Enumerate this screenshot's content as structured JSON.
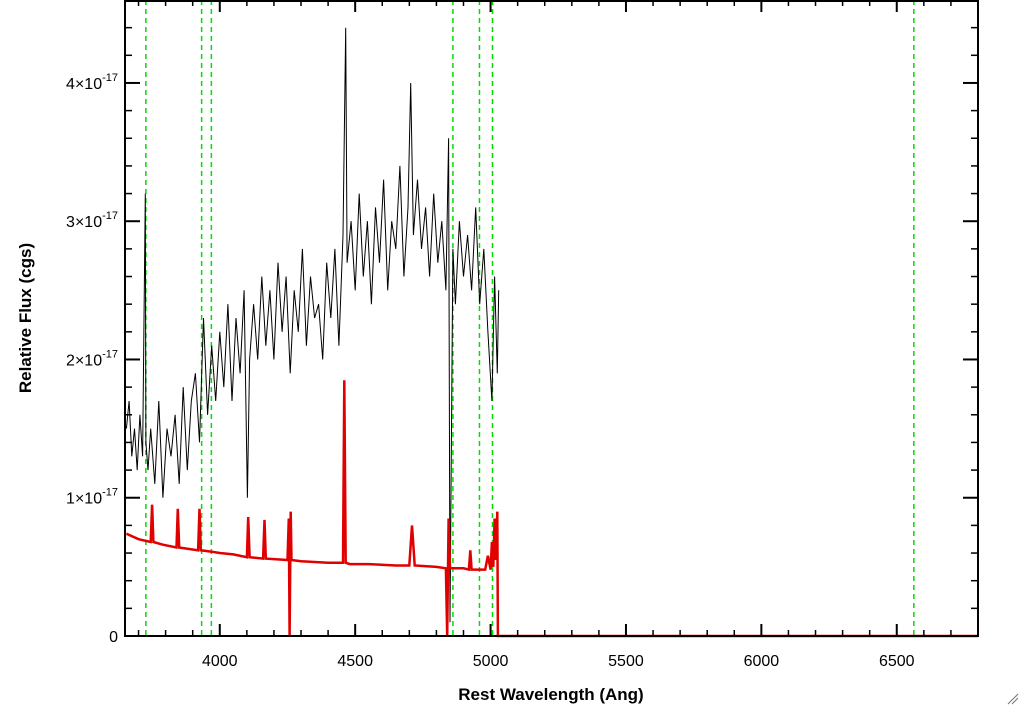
{
  "chart_data": {
    "type": "line",
    "title": "",
    "xlabel": "Rest Wavelength (Ang)",
    "ylabel": "Relative Flux (cgs)",
    "xlim": [
      3650,
      6800
    ],
    "ylim": [
      0,
      4.6e-17
    ],
    "x_ticks": [
      4000,
      4500,
      5000,
      5500,
      6000,
      6500
    ],
    "x_tick_labels": [
      "4000",
      "4500",
      "5000",
      "5500",
      "6000",
      "6500"
    ],
    "y_ticks": [
      0,
      1e-17,
      2e-17,
      3e-17,
      4e-17
    ],
    "y_tick_labels": [
      {
        "base": "0",
        "exp": ""
      },
      {
        "base": "1×10",
        "exp": "-17"
      },
      {
        "base": "2×10",
        "exp": "-17"
      },
      {
        "base": "3×10",
        "exp": "-17"
      },
      {
        "base": "4×10",
        "exp": "-17"
      }
    ],
    "grid": false,
    "colors": {
      "spectrum": "#000000",
      "error": "#e00000",
      "lines": "#00dd00",
      "frame": "#000000"
    },
    "vertical_lines": [
      3727,
      3933,
      3969,
      4861,
      4959,
      5007,
      6563
    ],
    "series": [
      {
        "role": "spectrum",
        "x": [
          3655,
          3665,
          3675,
          3685,
          3695,
          3705,
          3715,
          3725,
          3727,
          3735,
          3745,
          3760,
          3775,
          3790,
          3805,
          3820,
          3835,
          3850,
          3865,
          3880,
          3895,
          3910,
          3925,
          3940,
          3955,
          3970,
          3985,
          4000,
          4015,
          4030,
          4045,
          4060,
          4075,
          4090,
          4102,
          4110,
          4125,
          4140,
          4155,
          4170,
          4185,
          4200,
          4215,
          4230,
          4245,
          4260,
          4275,
          4290,
          4305,
          4320,
          4335,
          4350,
          4365,
          4380,
          4395,
          4410,
          4425,
          4440,
          4455,
          4465,
          4470,
          4485,
          4500,
          4515,
          4530,
          4545,
          4560,
          4575,
          4590,
          4605,
          4620,
          4635,
          4650,
          4665,
          4680,
          4695,
          4705,
          4715,
          4730,
          4745,
          4760,
          4775,
          4790,
          4805,
          4820,
          4835,
          4845,
          4850,
          4861,
          4870,
          4885,
          4900,
          4915,
          4930,
          4945,
          4960,
          4975,
          4990,
          5005,
          5015,
          5025,
          5030
        ],
        "values": [
          1.5e-17,
          1.7e-17,
          1.3e-17,
          1.5e-17,
          1.2e-17,
          1.6e-17,
          1.3e-17,
          3.2e-17,
          1.4e-17,
          1.2e-17,
          1.5e-17,
          1.1e-17,
          1.7e-17,
          1e-17,
          1.5e-17,
          1.3e-17,
          1.6e-17,
          1.1e-17,
          1.8e-17,
          1.2e-17,
          1.7e-17,
          1.9e-17,
          1.4e-17,
          2.3e-17,
          1.6e-17,
          2.1e-17,
          1.7e-17,
          2.2e-17,
          1.8e-17,
          2.4e-17,
          1.7e-17,
          2.3e-17,
          1.9e-17,
          2.5e-17,
          1e-17,
          2e-17,
          2.4e-17,
          2e-17,
          2.6e-17,
          2.1e-17,
          2.5e-17,
          2e-17,
          2.7e-17,
          2.2e-17,
          2.6e-17,
          1.9e-17,
          2.5e-17,
          2.2e-17,
          2.8e-17,
          2.1e-17,
          2.6e-17,
          2.3e-17,
          2.4e-17,
          2e-17,
          2.7e-17,
          2.3e-17,
          2.8e-17,
          2.1e-17,
          2.9e-17,
          4.4e-17,
          2.7e-17,
          3e-17,
          2.5e-17,
          3.2e-17,
          2.6e-17,
          3e-17,
          2.4e-17,
          3.1e-17,
          2.7e-17,
          3.3e-17,
          2.5e-17,
          3e-17,
          2.8e-17,
          3.4e-17,
          2.6e-17,
          3.1e-17,
          4e-17,
          2.9e-17,
          3.3e-17,
          2.8e-17,
          3.1e-17,
          2.6e-17,
          3.2e-17,
          2.7e-17,
          3e-17,
          2.5e-17,
          3.6e-17,
          1e-18,
          2.8e-17,
          2.4e-17,
          3e-17,
          2.6e-17,
          2.9e-17,
          2.5e-17,
          3.1e-17,
          2.4e-17,
          2.8e-17,
          2.2e-17,
          1.7e-17,
          2.6e-17,
          1.9e-17,
          2.5e-17
        ]
      },
      {
        "role": "error",
        "x": [
          3655,
          3700,
          3745,
          3750,
          3755,
          3790,
          3840,
          3845,
          3850,
          3920,
          3925,
          3930,
          3970,
          4000,
          4050,
          4100,
          4105,
          4110,
          4160,
          4165,
          4170,
          4250,
          4255,
          4258,
          4262,
          4265,
          4300,
          4400,
          4455,
          4460,
          4465,
          4480,
          4550,
          4650,
          4700,
          4710,
          4720,
          4800,
          4835,
          4840,
          4845,
          4850,
          4860,
          4900,
          4920,
          4925,
          4930,
          4980,
          4990,
          5000,
          5005,
          5010,
          5015,
          5020,
          5025,
          5027,
          5030,
          5100,
          5500,
          6000,
          6500,
          6800
        ],
        "values": [
          7.4e-18,
          7e-18,
          6.8e-18,
          9.5e-18,
          6.8e-18,
          6.6e-18,
          6.4e-18,
          9.2e-18,
          6.4e-18,
          6.2e-18,
          9.2e-18,
          6.2e-18,
          6.1e-18,
          6e-18,
          5.9e-18,
          5.7e-18,
          8.6e-18,
          5.7e-18,
          5.6e-18,
          8.4e-18,
          5.6e-18,
          5.5e-18,
          8.5e-18,
          0.0,
          9e-18,
          5.5e-18,
          5.4e-18,
          5.3e-18,
          5.3e-18,
          1.85e-17,
          5.3e-18,
          5.2e-18,
          5.2e-18,
          5.1e-18,
          5.1e-18,
          8e-18,
          5.1e-18,
          5e-18,
          4.9e-18,
          0.0,
          8.5e-18,
          4.9e-18,
          4.9e-18,
          4.9e-18,
          4.8e-18,
          6.2e-18,
          4.8e-18,
          4.8e-18,
          5.8e-18,
          4.8e-18,
          6.8e-18,
          5e-18,
          8.5e-18,
          5.5e-18,
          9e-18,
          0.0,
          0.0,
          0.0,
          0.0,
          0.0,
          0.0,
          0.0
        ]
      }
    ]
  }
}
